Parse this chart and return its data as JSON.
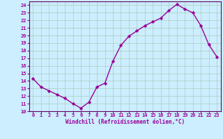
{
  "x": [
    0,
    1,
    2,
    3,
    4,
    5,
    6,
    7,
    8,
    9,
    10,
    11,
    12,
    13,
    14,
    15,
    16,
    17,
    18,
    19,
    20,
    21,
    22,
    23
  ],
  "y": [
    14.3,
    13.2,
    12.7,
    12.2,
    11.7,
    11.0,
    10.4,
    11.2,
    13.2,
    13.7,
    16.6,
    18.7,
    19.9,
    20.6,
    21.3,
    21.8,
    22.3,
    23.3,
    24.1,
    23.5,
    23.0,
    21.3,
    18.8,
    17.2
  ],
  "line_color": "#990099",
  "marker": "D",
  "markersize": 2.2,
  "linewidth": 1.0,
  "background_color": "#cceeff",
  "grid_color": "#aaccbb",
  "xlabel": "Windchill (Refroidissement éolien,°C)",
  "xlabel_color": "#990099",
  "tick_color": "#990099",
  "spine_color": "#660066",
  "ylim": [
    10,
    24.5
  ],
  "yticks": [
    10,
    11,
    12,
    13,
    14,
    15,
    16,
    17,
    18,
    19,
    20,
    21,
    22,
    23,
    24
  ],
  "xlim": [
    -0.5,
    23.5
  ],
  "xticks": [
    0,
    1,
    2,
    3,
    4,
    5,
    6,
    7,
    8,
    9,
    10,
    11,
    12,
    13,
    14,
    15,
    16,
    17,
    18,
    19,
    20,
    21,
    22,
    23
  ],
  "tick_labelsize": 5.0,
  "xlabel_fontsize": 5.5
}
